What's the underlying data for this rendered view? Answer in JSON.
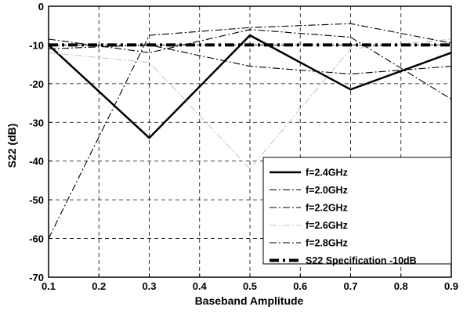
{
  "chart_data": {
    "type": "line",
    "title": "",
    "xlabel": "Baseband Amplitude",
    "ylabel": "S22 (dB)",
    "xlim": [
      0.1,
      0.9
    ],
    "ylim": [
      -70,
      0
    ],
    "xticks": [
      "0.1",
      "0.2",
      "0.3",
      "0.4",
      "0.5",
      "0.6",
      "0.7",
      "0.8",
      "0.9"
    ],
    "yticks": [
      "0",
      "-10",
      "-20",
      "-30",
      "-40",
      "-50",
      "-60",
      "-70"
    ],
    "grid": true,
    "legend_position": "bottom-right",
    "x": [
      0.1,
      0.3,
      0.5,
      0.7,
      0.9
    ],
    "series": [
      {
        "name": "f=2.4GHz",
        "color": "#000000",
        "style": "solid-thick",
        "values": [
          -10,
          -34,
          -7.5,
          -21.5,
          -12
        ]
      },
      {
        "name": "f=2.0GHz",
        "color": "#000000",
        "style": "dashdot",
        "values": [
          -60,
          -7.5,
          -5.5,
          -4.5,
          -9.5
        ]
      },
      {
        "name": "f=2.2GHz",
        "color": "#000000",
        "style": "dashdot",
        "values": [
          -8.5,
          -12,
          -6,
          -8,
          -24
        ]
      },
      {
        "name": "f=2.6GHz",
        "color": "#c8c8c8",
        "style": "dashdot",
        "values": [
          -12,
          -14.5,
          -42,
          -11,
          -8.5
        ]
      },
      {
        "name": "f=2.8GHz",
        "color": "#000000",
        "style": "dashdot",
        "values": [
          -11,
          -10,
          -15.5,
          -17.5,
          -15.5
        ]
      },
      {
        "name": "S22 Specification -10dB",
        "color": "#000000",
        "style": "dashdot-thick",
        "values": [
          -10,
          -10,
          -10,
          -10,
          -10
        ]
      }
    ]
  }
}
